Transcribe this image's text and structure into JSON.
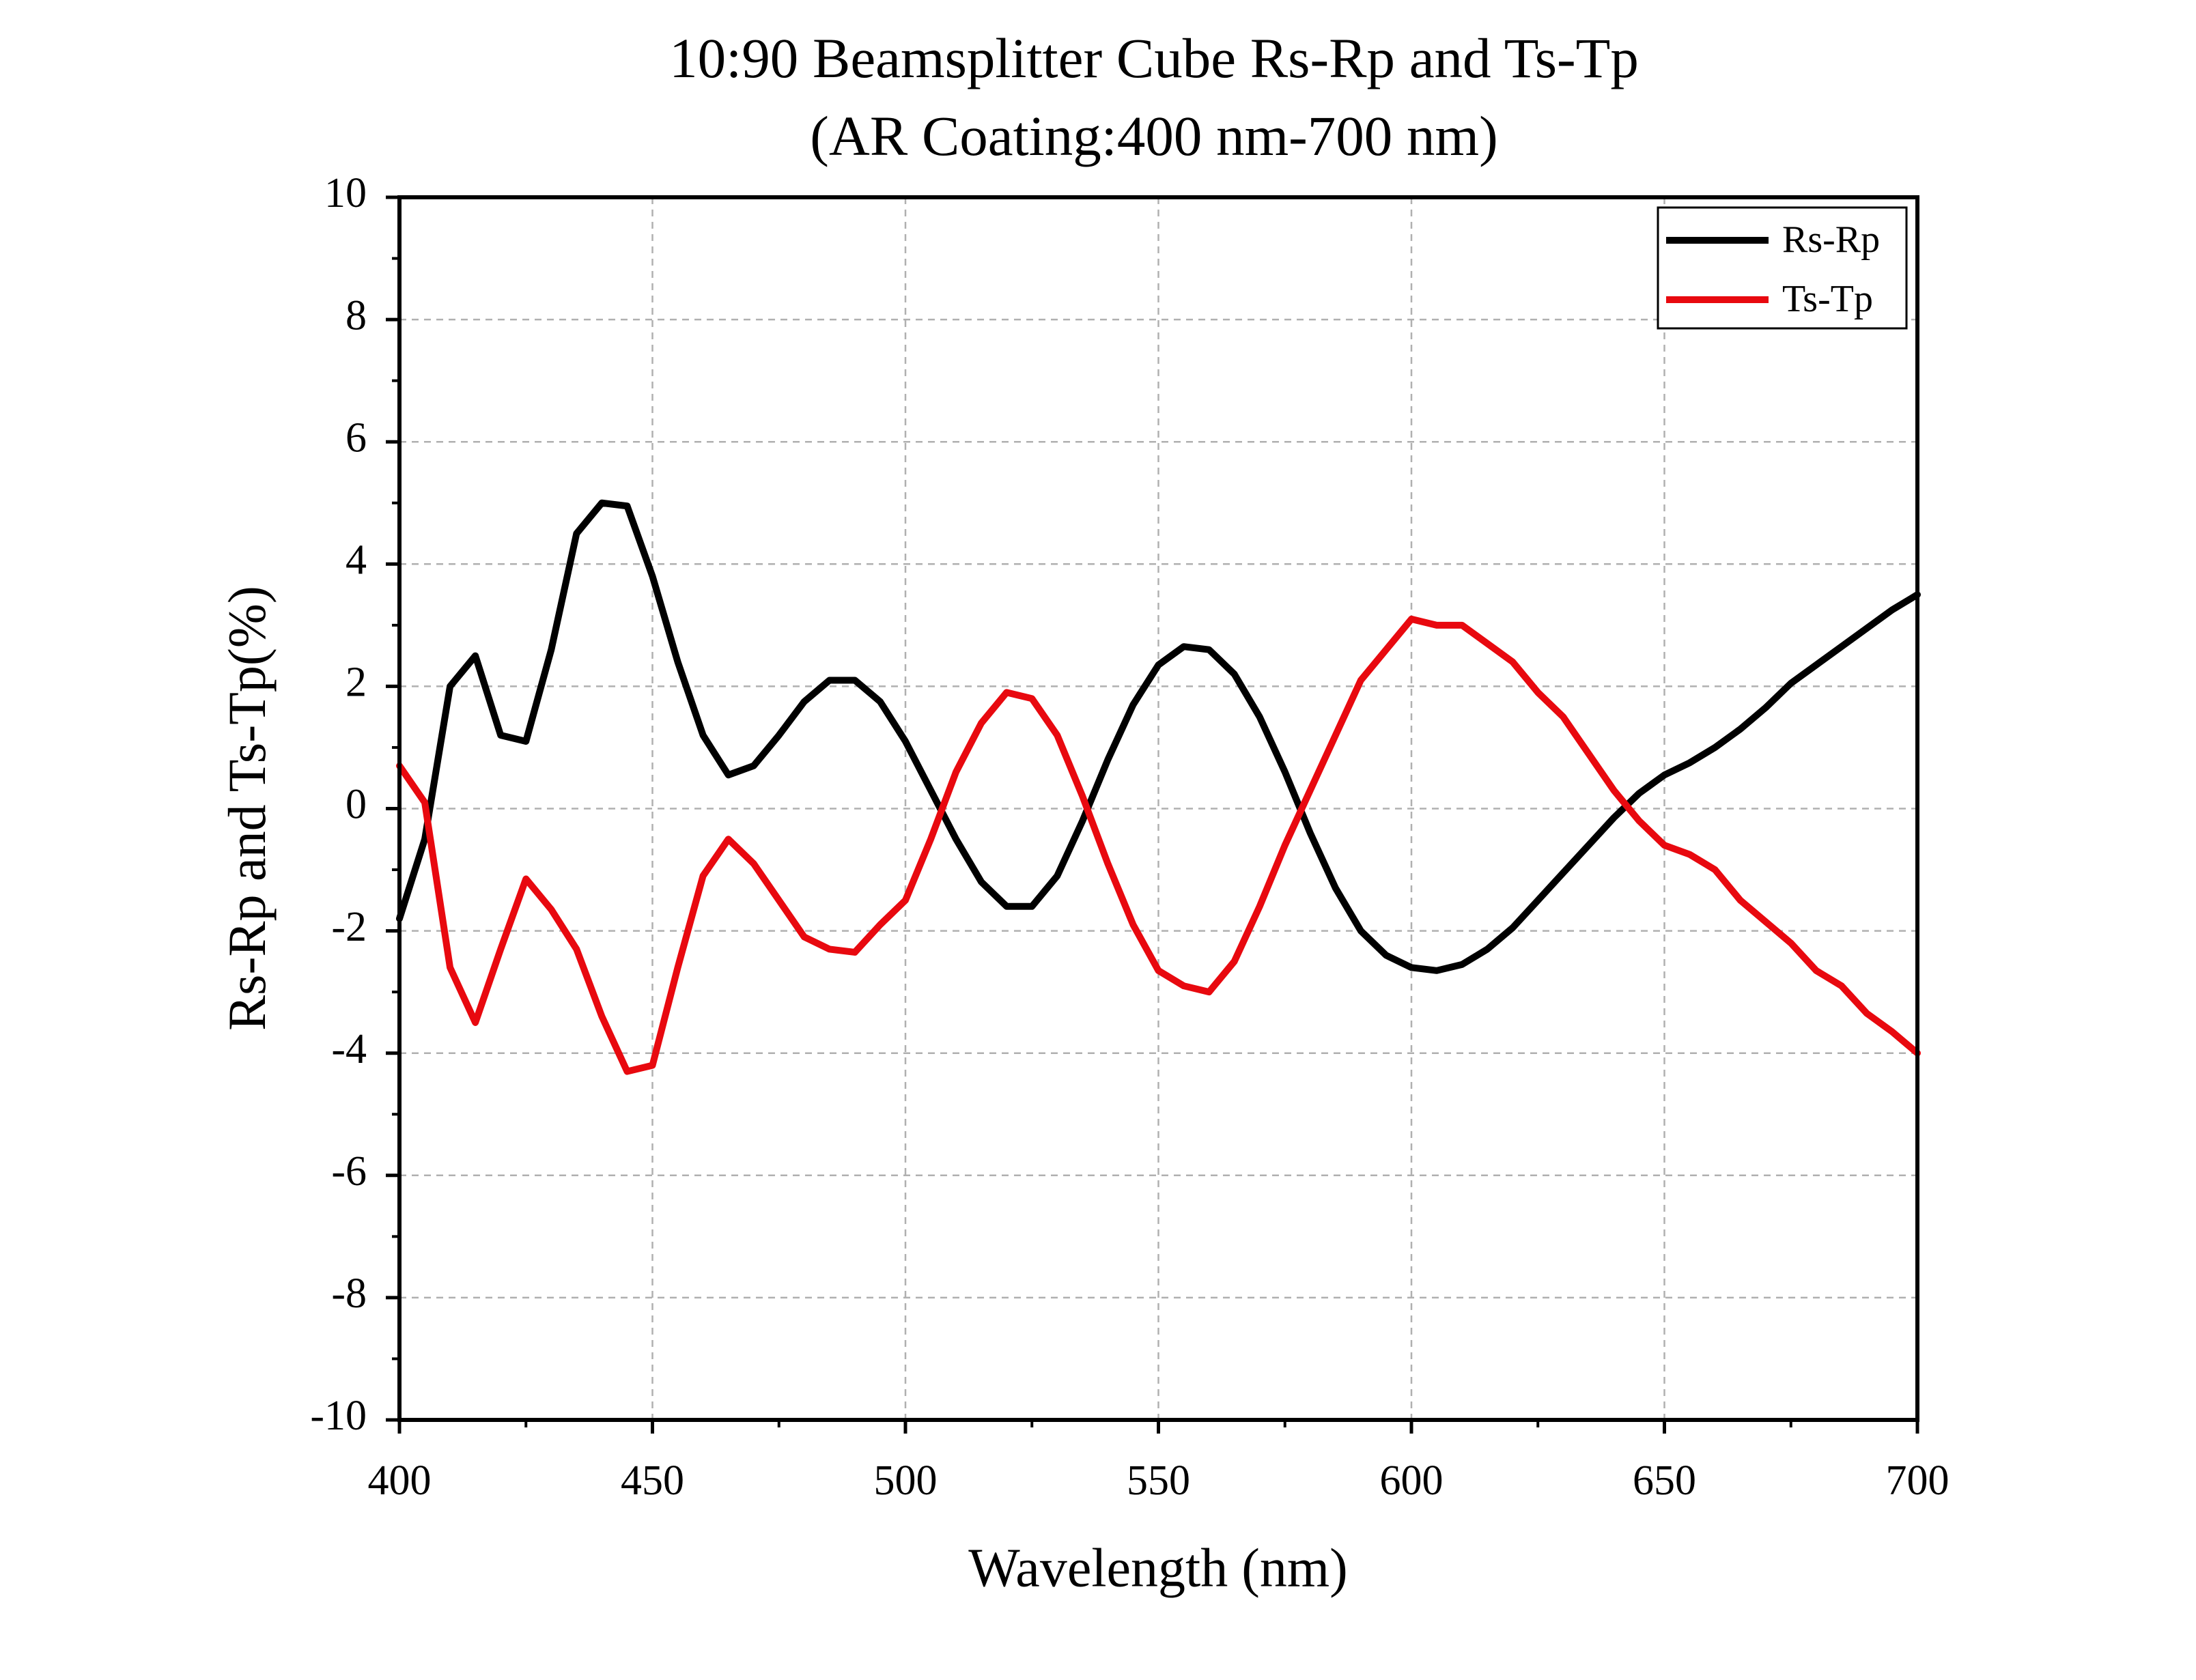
{
  "chart_data": {
    "type": "line",
    "title": [
      "10:90 Beamsplitter Cube Rs-Rp and Ts-Tp",
      "(AR Coating:400 nm-700 nm)"
    ],
    "x_label": "Wavelength (nm)",
    "y_label": "Rs-Rp and Ts-Tp(%)",
    "x": [
      400,
      405,
      410,
      415,
      420,
      425,
      430,
      435,
      440,
      445,
      450,
      455,
      460,
      465,
      470,
      475,
      480,
      485,
      490,
      495,
      500,
      505,
      510,
      515,
      520,
      525,
      530,
      535,
      540,
      545,
      550,
      555,
      560,
      565,
      570,
      575,
      580,
      585,
      590,
      595,
      600,
      605,
      610,
      615,
      620,
      625,
      630,
      635,
      640,
      645,
      650,
      655,
      660,
      665,
      670,
      675,
      680,
      685,
      690,
      695,
      700
    ],
    "series": [
      {
        "name": "Rs-Rp",
        "color": "#000000",
        "values": [
          -1.8,
          -0.5,
          2.0,
          2.5,
          1.2,
          1.1,
          2.6,
          4.5,
          5.0,
          4.95,
          3.8,
          2.4,
          1.2,
          0.55,
          0.7,
          1.2,
          1.75,
          2.1,
          2.1,
          1.75,
          1.1,
          0.3,
          -0.5,
          -1.2,
          -1.6,
          -1.6,
          -1.1,
          -0.2,
          0.8,
          1.7,
          2.35,
          2.65,
          2.6,
          2.2,
          1.5,
          0.6,
          -0.4,
          -1.3,
          -2.0,
          -2.4,
          -2.6,
          -2.65,
          -2.55,
          -2.3,
          -1.95,
          -1.5,
          -1.05,
          -0.6,
          -0.15,
          0.25,
          0.55,
          0.75,
          1.0,
          1.3,
          1.65,
          2.05,
          2.35,
          2.65,
          2.95,
          3.25,
          3.5
        ]
      },
      {
        "name": "Ts-Tp",
        "color": "#e8090f",
        "values": [
          0.7,
          0.1,
          -2.6,
          -3.5,
          -2.3,
          -1.15,
          -1.65,
          -2.3,
          -3.4,
          -4.3,
          -4.2,
          -2.6,
          -1.1,
          -0.5,
          -0.9,
          -1.5,
          -2.1,
          -2.3,
          -2.35,
          -1.9,
          -1.5,
          -0.5,
          0.6,
          1.4,
          1.9,
          1.8,
          1.2,
          0.2,
          -0.9,
          -1.9,
          -2.65,
          -2.9,
          -3.0,
          -2.5,
          -1.6,
          -0.6,
          0.3,
          1.2,
          2.1,
          2.6,
          3.1,
          3.0,
          3.0,
          2.7,
          2.4,
          1.9,
          1.5,
          0.9,
          0.3,
          -0.2,
          -0.6,
          -0.75,
          -1.0,
          -1.5,
          -1.85,
          -2.2,
          -2.65,
          -2.9,
          -3.35,
          -3.65,
          -4.0
        ]
      }
    ],
    "xlim": [
      400,
      700
    ],
    "xticks": [
      400,
      450,
      500,
      550,
      600,
      650,
      700
    ],
    "ylim": [
      -10,
      10
    ],
    "yticks": [
      -10,
      -8,
      -6,
      -4,
      -2,
      0,
      2,
      4,
      6,
      8,
      10
    ],
    "grid": true,
    "legend": "top-right"
  }
}
